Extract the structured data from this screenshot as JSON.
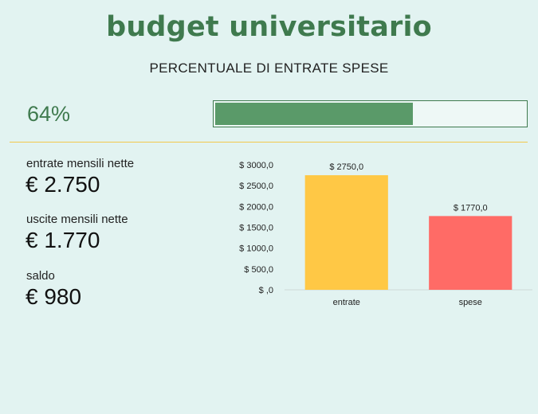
{
  "header": {
    "title": "budget universitario",
    "subtitle": "PERCENTUALE DI ENTRATE SPESE"
  },
  "progress": {
    "label": "64%",
    "fraction": 0.64,
    "fill_color": "#5a9a69",
    "border_color": "#3f7a4e"
  },
  "stats": {
    "income_label": "entrate mensili nette",
    "income_value": "€ 2.750",
    "expense_label": "uscite mensili nette",
    "expense_value": "€ 1.770",
    "balance_label": "saldo",
    "balance_value": "€ 980"
  },
  "chart_data": {
    "type": "bar",
    "categories": [
      "entrate",
      "spese"
    ],
    "values": [
      2750,
      1770
    ],
    "data_labels": [
      "$ 2750,0",
      "$ 1770,0"
    ],
    "colors": [
      "#ffc845",
      "#ff6b66"
    ],
    "ylim": [
      0,
      3000
    ],
    "yticks": [
      0,
      500,
      1000,
      1500,
      2000,
      2500,
      3000
    ],
    "ytick_labels": [
      "$ ,0",
      "$ 500,0",
      "$ 1000,0",
      "$ 1500,0",
      "$ 2000,0",
      "$ 2500,0",
      "$ 3000,0"
    ],
    "title": "",
    "xlabel": "",
    "ylabel": "",
    "grid": false,
    "legend": "none"
  }
}
